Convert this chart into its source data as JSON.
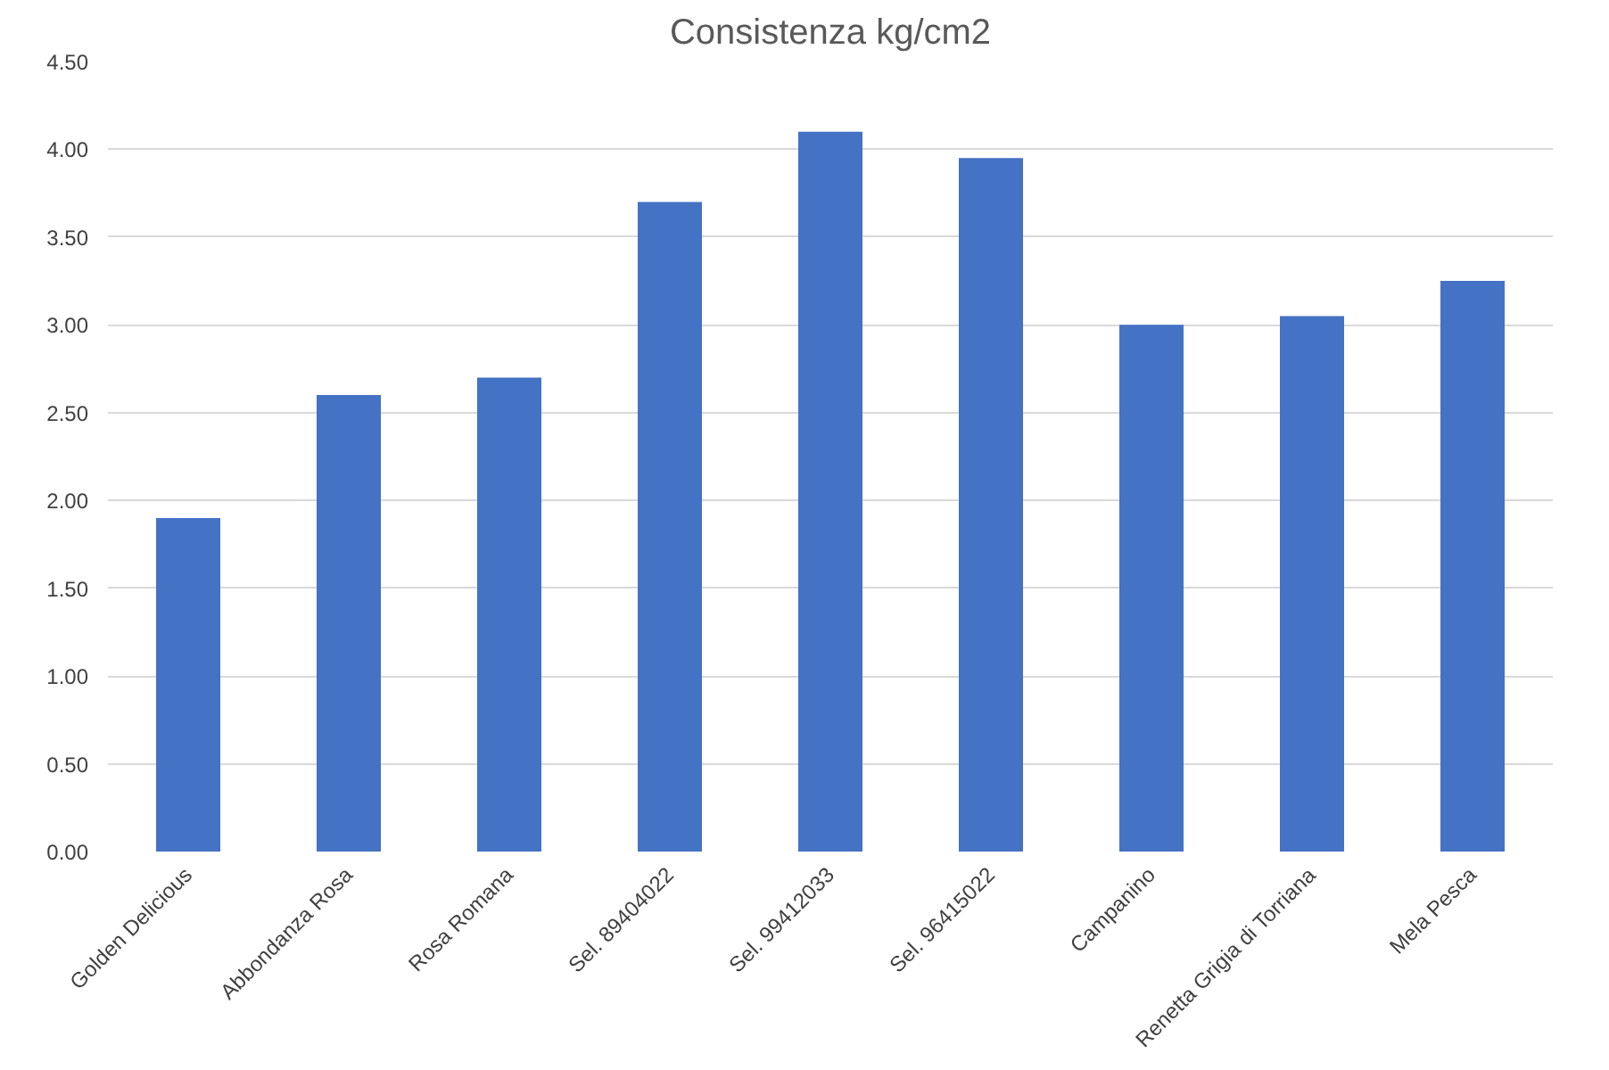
{
  "chart_data": {
    "type": "bar",
    "title": "Consistenza kg/cm2",
    "categories": [
      "Golden Delicious",
      "Abbondanza Rosa",
      "Rosa Romana",
      "Sel. 89404022",
      "Sel. 99412033",
      "Sel. 96415022",
      "Campanino",
      "Renetta Grigia di Torriana",
      "Mela Pesca"
    ],
    "values": [
      1.9,
      2.6,
      2.7,
      3.7,
      4.1,
      3.95,
      3.0,
      3.05,
      3.25
    ],
    "color": "#4472c4",
    "ylim": [
      0,
      4.5
    ],
    "yticks": [
      {
        "value": 0,
        "label": "0.00"
      },
      {
        "value": 0.5,
        "label": "0.50"
      },
      {
        "value": 1,
        "label": "1.00"
      },
      {
        "value": 1.5,
        "label": "1.50"
      },
      {
        "value": 2,
        "label": "2.00"
      },
      {
        "value": 2.5,
        "label": "2.50"
      },
      {
        "value": 3,
        "label": "3.00"
      },
      {
        "value": 3.5,
        "label": "3.50"
      },
      {
        "value": 4,
        "label": "4.00"
      },
      {
        "value": 4.5,
        "label": "4.50"
      }
    ],
    "grid": "y"
  }
}
